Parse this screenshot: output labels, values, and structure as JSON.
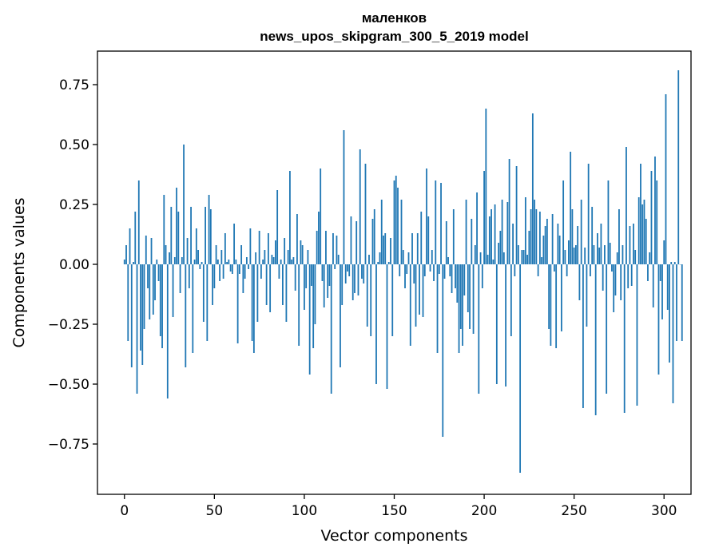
{
  "chart_data": {
    "type": "bar",
    "title_line1": "маленков",
    "title_line2": "news_upos_skipgram_300_5_2019 model",
    "xlabel": "Vector components",
    "ylabel": "Components values",
    "xlim": [
      -15,
      315
    ],
    "ylim": [
      -0.96,
      0.89
    ],
    "xticks": [
      0,
      50,
      100,
      150,
      200,
      250,
      300
    ],
    "yticks": [
      -0.75,
      -0.5,
      -0.25,
      0.0,
      0.25,
      0.5,
      0.75
    ],
    "ytick_labels": [
      "−0.75",
      "−0.50",
      "−0.25",
      "0.00",
      "0.25",
      "0.50",
      "0.75"
    ],
    "grid": false,
    "bar_color": "#1f77b4",
    "values": [
      0.02,
      0.08,
      -0.32,
      0.15,
      -0.43,
      0.01,
      0.22,
      -0.54,
      0.35,
      -0.36,
      -0.42,
      -0.27,
      0.12,
      -0.1,
      -0.23,
      0.11,
      -0.21,
      -0.15,
      0.02,
      -0.07,
      -0.3,
      -0.35,
      0.29,
      0.08,
      -0.56,
      0.05,
      0.24,
      -0.22,
      0.03,
      0.32,
      0.22,
      -0.12,
      0.03,
      0.5,
      -0.43,
      0.11,
      -0.1,
      0.24,
      -0.37,
      0.02,
      0.15,
      0.06,
      -0.02,
      0.01,
      -0.24,
      0.24,
      -0.32,
      0.29,
      0.23,
      -0.17,
      -0.1,
      0.08,
      0.02,
      -0.07,
      0.06,
      -0.06,
      0.13,
      0.01,
      0.02,
      -0.03,
      -0.04,
      0.17,
      0.02,
      -0.33,
      -0.04,
      0.08,
      -0.12,
      -0.06,
      0.03,
      -0.02,
      0.15,
      -0.32,
      -0.37,
      0.05,
      -0.24,
      0.14,
      -0.06,
      0.02,
      0.06,
      -0.17,
      0.13,
      -0.2,
      0.04,
      0.03,
      0.1,
      0.31,
      -0.06,
      0.02,
      -0.17,
      0.11,
      -0.24,
      0.06,
      0.39,
      0.02,
      0.03,
      -0.11,
      0.21,
      -0.34,
      0.1,
      0.08,
      -0.19,
      -0.1,
      0.06,
      -0.46,
      -0.09,
      -0.35,
      -0.25,
      0.14,
      0.22,
      0.4,
      -0.07,
      -0.18,
      0.14,
      -0.14,
      -0.09,
      -0.54,
      0.13,
      -0.02,
      0.12,
      0.04,
      -0.43,
      -0.17,
      0.56,
      -0.08,
      -0.03,
      -0.05,
      0.2,
      -0.15,
      -0.12,
      0.18,
      -0.13,
      0.48,
      -0.06,
      -0.08,
      0.42,
      -0.26,
      0.04,
      -0.3,
      0.19,
      0.23,
      -0.5,
      0.01,
      0.05,
      0.27,
      0.12,
      0.13,
      -0.52,
      0.01,
      0.11,
      -0.3,
      0.35,
      0.37,
      0.32,
      -0.05,
      0.27,
      0.06,
      -0.1,
      -0.04,
      0.05,
      -0.34,
      0.13,
      -0.08,
      -0.26,
      0.13,
      -0.21,
      0.22,
      -0.22,
      -0.05,
      0.4,
      0.2,
      -0.03,
      0.06,
      -0.07,
      0.35,
      -0.37,
      -0.04,
      0.34,
      -0.72,
      -0.06,
      0.18,
      0.03,
      -0.05,
      -0.12,
      0.23,
      -0.1,
      -0.16,
      -0.37,
      -0.27,
      -0.34,
      -0.13,
      0.27,
      -0.2,
      -0.27,
      0.19,
      -0.29,
      0.08,
      0.3,
      -0.54,
      0.05,
      -0.1,
      0.39,
      0.65,
      0.04,
      0.2,
      0.23,
      0.02,
      0.25,
      -0.5,
      0.09,
      0.14,
      0.27,
      0.05,
      -0.51,
      0.26,
      0.44,
      -0.3,
      0.17,
      -0.05,
      0.41,
      0.08,
      -0.87,
      0.06,
      0.06,
      0.28,
      0.04,
      0.14,
      0.23,
      0.63,
      0.27,
      0.23,
      -0.05,
      0.22,
      0.03,
      0.12,
      0.16,
      0.19,
      -0.27,
      -0.34,
      0.21,
      -0.03,
      -0.35,
      0.17,
      0.12,
      -0.28,
      0.35,
      0.06,
      -0.05,
      0.1,
      0.47,
      0.23,
      0.07,
      0.08,
      0.16,
      -0.15,
      0.27,
      -0.6,
      0.07,
      -0.26,
      0.42,
      -0.05,
      0.24,
      0.08,
      -0.63,
      0.13,
      0.07,
      0.17,
      -0.11,
      0.08,
      -0.54,
      0.35,
      0.09,
      -0.03,
      -0.2,
      -0.13,
      0.05,
      0.23,
      -0.15,
      0.08,
      -0.62,
      0.49,
      -0.1,
      0.16,
      -0.09,
      0.17,
      0.06,
      -0.59,
      0.28,
      0.42,
      0.25,
      0.27,
      0.19,
      -0.07,
      0.05,
      0.39,
      -0.18,
      0.45,
      0.35,
      -0.46,
      -0.07,
      -0.23,
      0.1,
      0.71,
      -0.19,
      -0.41,
      0.01,
      -0.58,
      0.01,
      -0.32,
      0.81,
      0.0,
      -0.32
    ]
  }
}
